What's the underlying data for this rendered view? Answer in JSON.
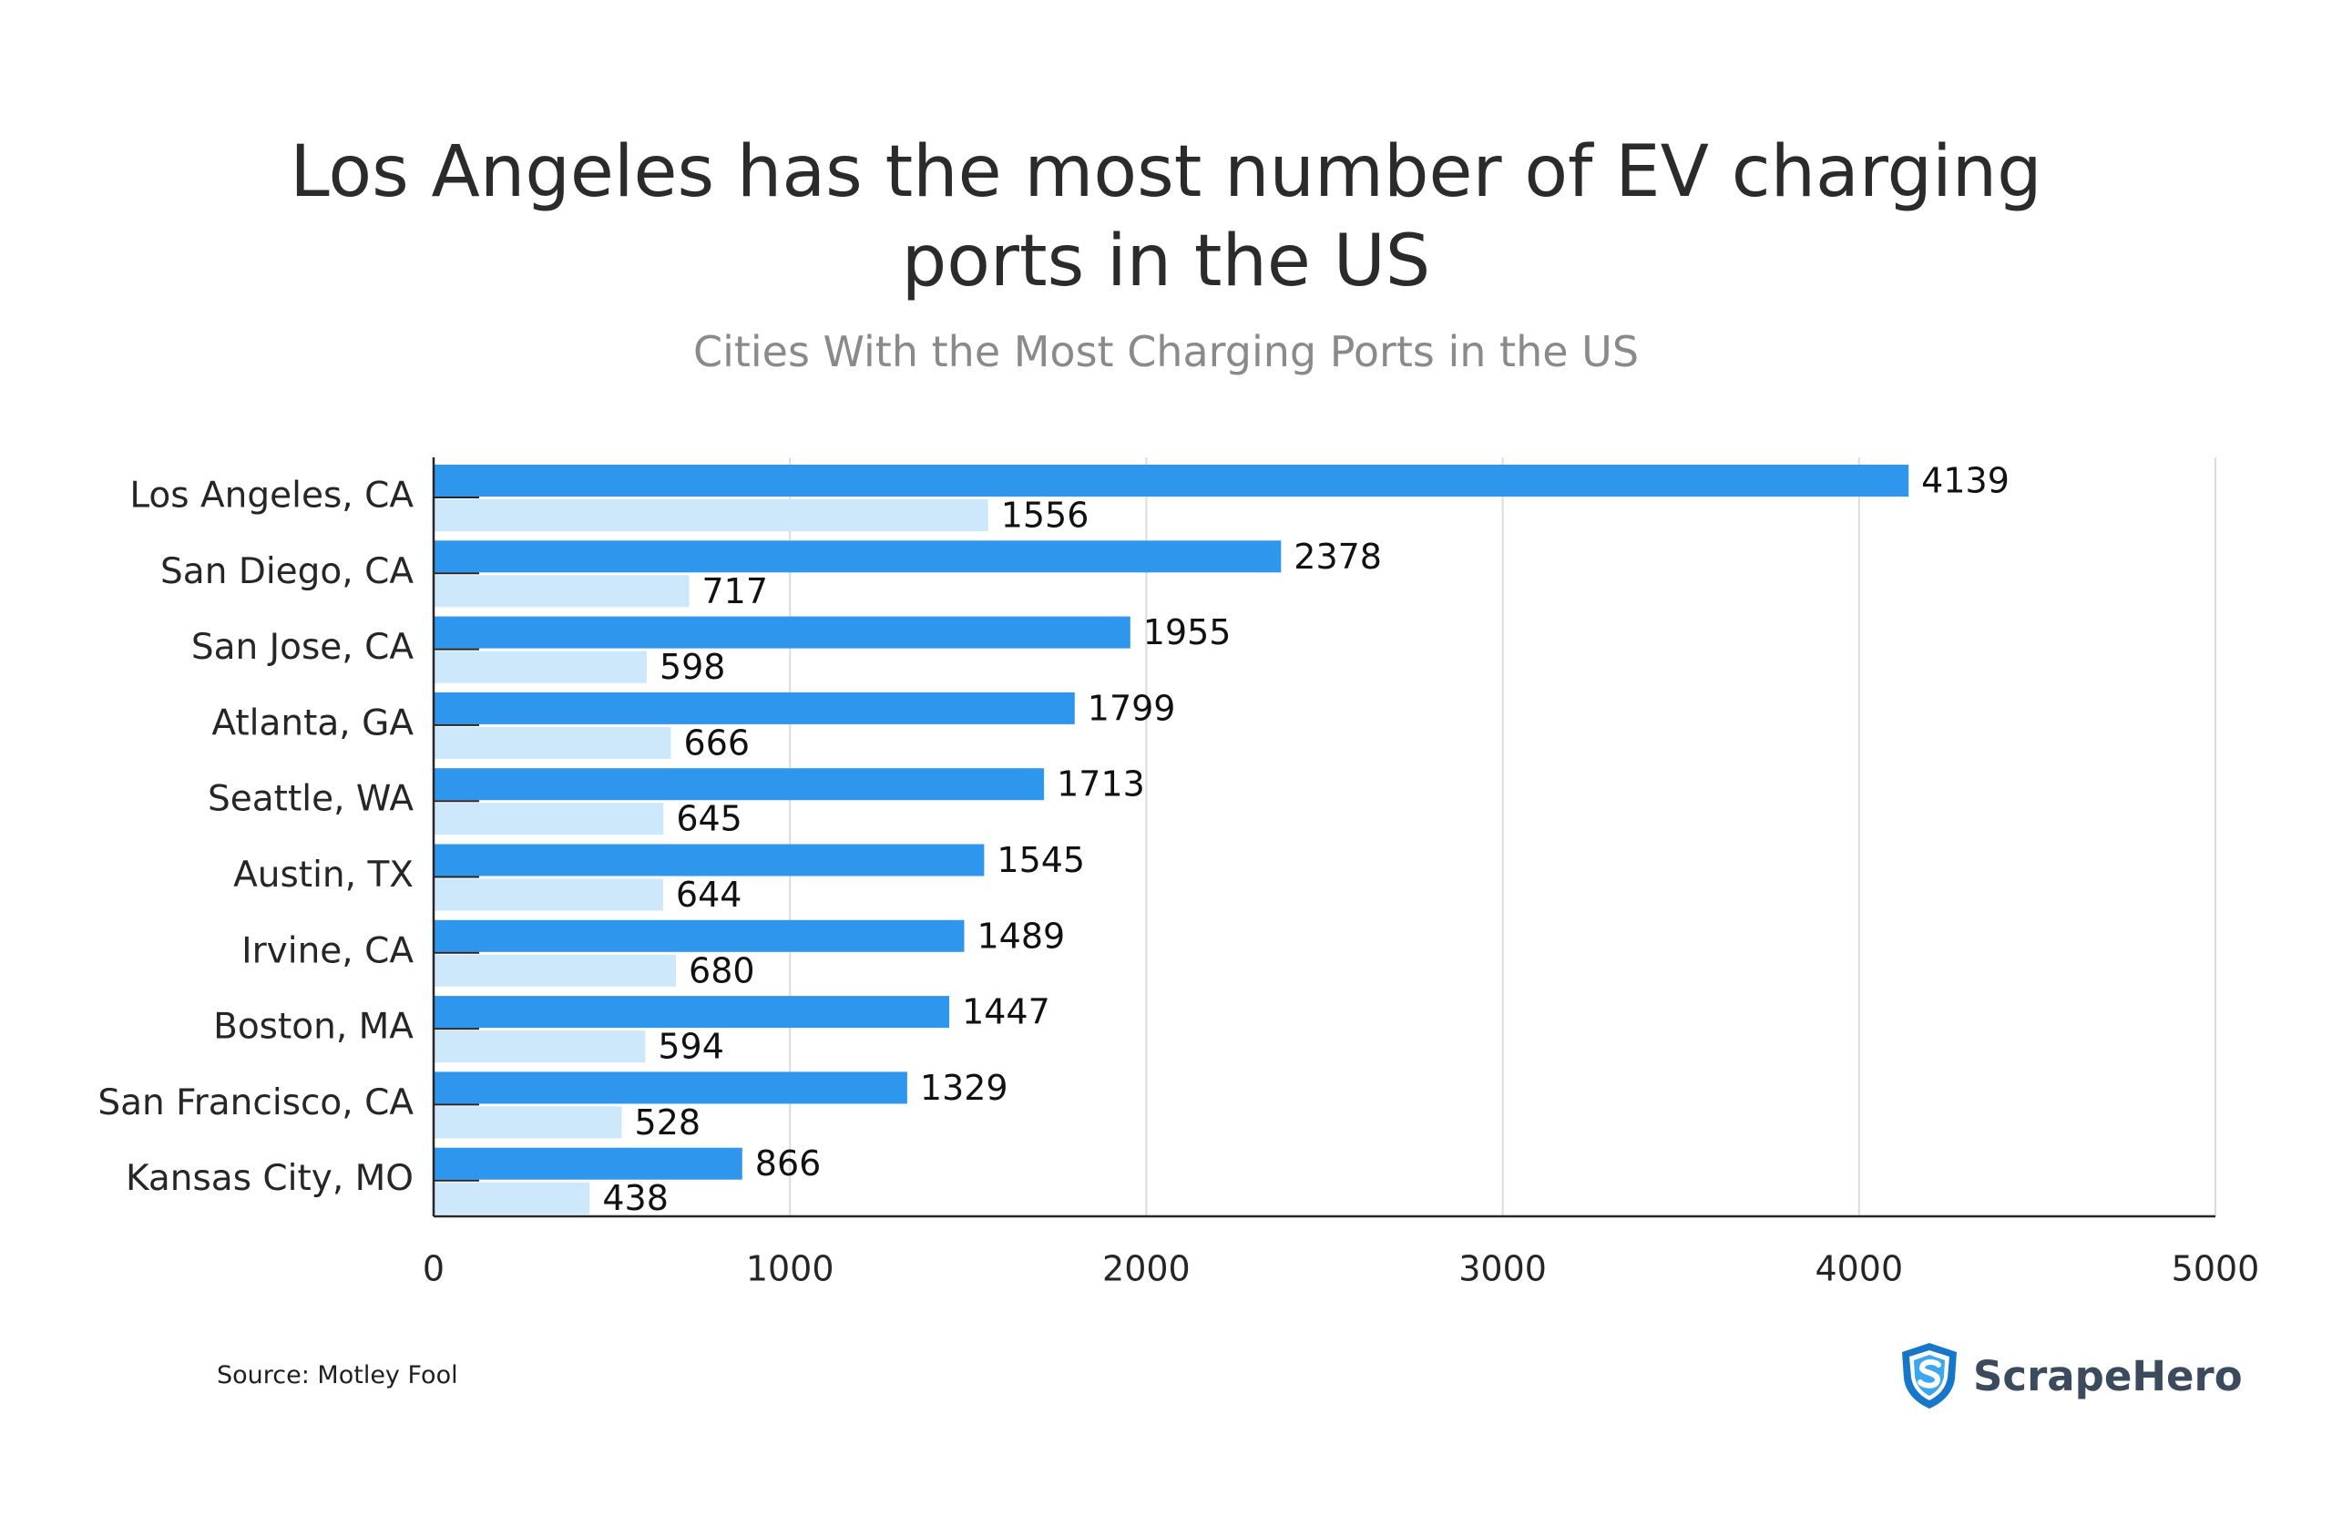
{
  "chart_data": {
    "type": "bar",
    "orientation": "horizontal",
    "title": "Los Angeles has the most number of EV charging ports in the US",
    "title_lines": [
      "Los Angeles has the most number of EV charging",
      "ports in the US"
    ],
    "subtitle": "Cities With the Most Charging Ports in the US",
    "categories": [
      "Los Angeles, CA",
      "San Diego, CA",
      "San Jose, CA",
      "Atlanta, GA",
      "Seattle, WA",
      "Austin, TX",
      "Irvine, CA",
      "Boston, MA",
      "San Francisco, CA",
      "Kansas City, MO"
    ],
    "series": [
      {
        "name": "series-1",
        "color": "#2f96ed",
        "values": [
          4139,
          2378,
          1955,
          1799,
          1713,
          1545,
          1489,
          1447,
          1329,
          866
        ]
      },
      {
        "name": "series-2",
        "color": "#cde7fb",
        "values": [
          1556,
          717,
          598,
          666,
          645,
          644,
          680,
          594,
          528,
          438
        ]
      }
    ],
    "xlim": [
      0,
      5000
    ],
    "xticks": [
      0,
      1000,
      2000,
      3000,
      4000,
      5000
    ],
    "xtick_labels": [
      "0",
      "1000",
      "2000",
      "3000",
      "4000",
      "5000"
    ],
    "grid": true,
    "xlabel": "",
    "ylabel": ""
  },
  "footer": {
    "source": "Source: Motley Fool",
    "brand": "ScrapeHero",
    "brand_icon": "shield-s-icon"
  },
  "colors": {
    "accent": "#2f96ed",
    "light": "#cde7fb",
    "grid": "#dcdcdc",
    "axis": "#262626",
    "title": "#2b2b2b",
    "subtitle": "#8a8a8a",
    "brand_outer": "#1677c9",
    "brand_inner": "#3aa7f0"
  }
}
